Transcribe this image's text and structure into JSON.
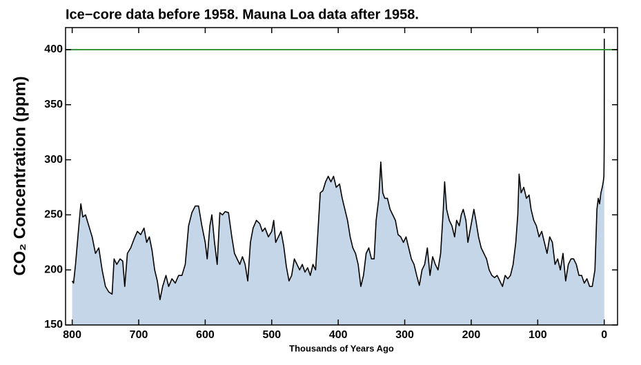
{
  "chart_data": {
    "type": "area",
    "title": "Ice−core data before 1958. Mauna Loa data after 1958.",
    "xlabel": "Thousands of Years Ago",
    "ylabel": "CO₂ Concentration (ppm)",
    "xlim": [
      810,
      -20
    ],
    "ylim": [
      150,
      420
    ],
    "xticks": [
      800,
      700,
      600,
      500,
      400,
      300,
      200,
      100,
      0
    ],
    "yticks": [
      150,
      200,
      250,
      300,
      350,
      400
    ],
    "line_color": "#000000",
    "fill_color": "#c5d6e8",
    "reference_line": {
      "value": 400,
      "color": "#2e8b2e"
    },
    "x": [
      800,
      798,
      795,
      790,
      787,
      784,
      780,
      775,
      770,
      765,
      760,
      755,
      750,
      745,
      740,
      737,
      733,
      728,
      724,
      721,
      717,
      712,
      707,
      702,
      697,
      692,
      688,
      684,
      680,
      676,
      672,
      668,
      664,
      659,
      655,
      650,
      645,
      640,
      635,
      630,
      625,
      620,
      615,
      610,
      605,
      600,
      597,
      593,
      590,
      586,
      582,
      578,
      574,
      570,
      565,
      560,
      556,
      552,
      548,
      544,
      540,
      536,
      532,
      528,
      523,
      518,
      514,
      510,
      505,
      500,
      497,
      494,
      490,
      486,
      482,
      478,
      474,
      470,
      466,
      462,
      458,
      454,
      450,
      446,
      442,
      438,
      434,
      430,
      427,
      423,
      419,
      415,
      411,
      407,
      403,
      398,
      394,
      390,
      386,
      382,
      378,
      374,
      370,
      366,
      362,
      358,
      354,
      350,
      346,
      343,
      339,
      336,
      333,
      330,
      326,
      322,
      318,
      314,
      310,
      306,
      302,
      298,
      294,
      290,
      286,
      282,
      278,
      274,
      270,
      266,
      262,
      258,
      254,
      250,
      246,
      242,
      240,
      237,
      233,
      229,
      225,
      222,
      218,
      215,
      212,
      208,
      205,
      202,
      199,
      196,
      193,
      189,
      185,
      181,
      177,
      173,
      169,
      165,
      161,
      157,
      153,
      149,
      145,
      141,
      137,
      133,
      130,
      128,
      125,
      121,
      117,
      113,
      110,
      106,
      102,
      98,
      94,
      90,
      86,
      82,
      78,
      74,
      70,
      66,
      62,
      58,
      54,
      50,
      46,
      42,
      38,
      34,
      30,
      26,
      22,
      18,
      14,
      11,
      9,
      7,
      5,
      3,
      1.5,
      0.5,
      0.2,
      0.0,
      -0.03,
      -0.06
    ],
    "values": [
      190,
      188,
      205,
      240,
      260,
      248,
      250,
      240,
      230,
      215,
      220,
      200,
      185,
      180,
      178,
      210,
      205,
      210,
      208,
      185,
      215,
      220,
      228,
      235,
      232,
      238,
      225,
      230,
      218,
      200,
      190,
      173,
      185,
      195,
      185,
      192,
      188,
      195,
      195,
      205,
      240,
      252,
      258,
      258,
      240,
      225,
      210,
      240,
      250,
      225,
      205,
      252,
      250,
      253,
      252,
      230,
      215,
      210,
      205,
      212,
      205,
      190,
      225,
      238,
      245,
      242,
      235,
      238,
      230,
      235,
      245,
      225,
      230,
      235,
      222,
      203,
      190,
      195,
      210,
      205,
      200,
      205,
      198,
      202,
      195,
      205,
      200,
      240,
      270,
      272,
      280,
      285,
      280,
      285,
      275,
      278,
      265,
      255,
      245,
      230,
      220,
      215,
      205,
      185,
      195,
      215,
      220,
      210,
      210,
      245,
      265,
      298,
      270,
      265,
      265,
      255,
      250,
      245,
      232,
      230,
      225,
      230,
      220,
      210,
      205,
      195,
      186,
      200,
      205,
      220,
      195,
      212,
      205,
      200,
      215,
      255,
      280,
      255,
      245,
      240,
      230,
      245,
      240,
      250,
      255,
      245,
      225,
      235,
      245,
      255,
      245,
      230,
      220,
      215,
      210,
      200,
      195,
      193,
      195,
      190,
      185,
      195,
      192,
      195,
      205,
      225,
      250,
      287,
      270,
      275,
      265,
      268,
      255,
      245,
      240,
      230,
      235,
      225,
      215,
      230,
      225,
      205,
      210,
      200,
      215,
      190,
      205,
      210,
      210,
      205,
      195,
      195,
      188,
      192,
      185,
      185,
      200,
      255,
      265,
      260,
      270,
      275,
      280,
      285,
      300,
      315,
      350,
      410
    ]
  }
}
